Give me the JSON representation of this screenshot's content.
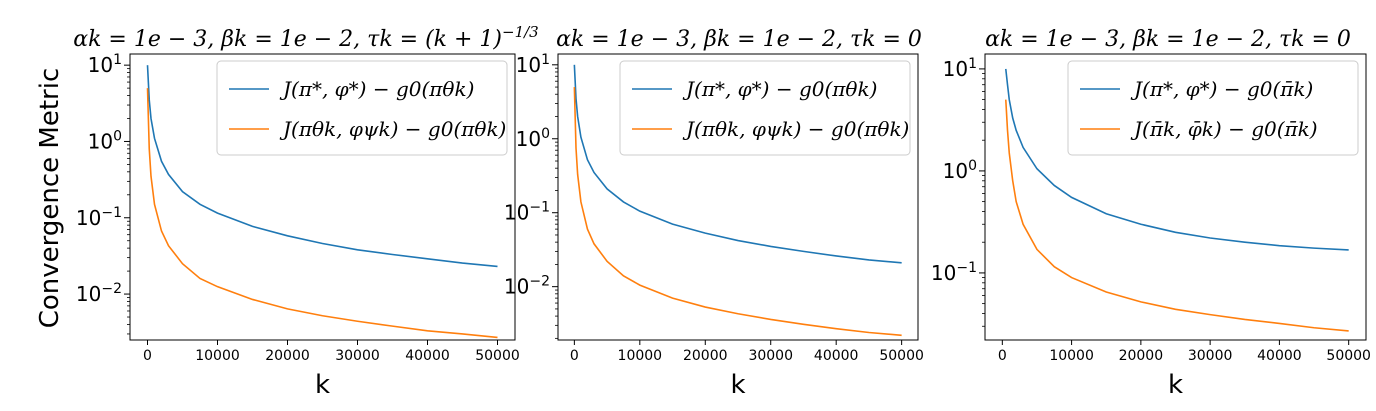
{
  "ylabel": "Convergence Metric",
  "colors": {
    "series1": "#1f77b4",
    "series2": "#ff7f0e"
  },
  "chart_data": [
    {
      "type": "line",
      "title": "αk = 1e − 3, βk = 1e − 2, τk = (k + 1)^−1/3",
      "xlabel": "k",
      "ylabel": "Convergence Metric",
      "yscale": "log",
      "xlim": [
        -2500,
        52500
      ],
      "ylim": [
        0.0025,
        14
      ],
      "xticks": [
        0,
        10000,
        20000,
        30000,
        40000,
        50000
      ],
      "xtick_labels": [
        "0",
        "10000",
        "20000",
        "30000",
        "40000",
        "50000"
      ],
      "yticks": [
        0.01,
        0.1,
        1,
        10
      ],
      "ytick_labels": [
        "10^-2",
        "10^-1",
        "10^0",
        "10^1"
      ],
      "legend": "top-right",
      "grid": false,
      "series": [
        {
          "name": "J(π*, φ*) − g0(πθk)",
          "x": [
            0,
            250,
            500,
            1000,
            2000,
            3000,
            5000,
            7500,
            10000,
            15000,
            20000,
            25000,
            30000,
            35000,
            40000,
            45000,
            50000
          ],
          "y": [
            10.0,
            3.5,
            2.0,
            1.1,
            0.55,
            0.37,
            0.22,
            0.15,
            0.115,
            0.077,
            0.058,
            0.046,
            0.038,
            0.033,
            0.029,
            0.0255,
            0.023
          ]
        },
        {
          "name": "J(πθk, φψk) − g0(πθk)",
          "x": [
            0,
            250,
            500,
            1000,
            2000,
            3000,
            5000,
            7500,
            10000,
            15000,
            20000,
            25000,
            30000,
            35000,
            40000,
            45000,
            50000
          ],
          "y": [
            5.0,
            0.8,
            0.35,
            0.15,
            0.067,
            0.043,
            0.025,
            0.016,
            0.0125,
            0.0085,
            0.0064,
            0.0052,
            0.0044,
            0.0038,
            0.0033,
            0.003,
            0.0027
          ]
        }
      ]
    },
    {
      "type": "line",
      "title": "αk = 1e − 3, βk = 1e − 2, τk = 0",
      "xlabel": "k",
      "yscale": "log",
      "xlim": [
        -2500,
        52500
      ],
      "ylim": [
        0.0019,
        14
      ],
      "xticks": [
        0,
        10000,
        20000,
        30000,
        40000,
        50000
      ],
      "xtick_labels": [
        "0",
        "10000",
        "20000",
        "30000",
        "40000",
        "50000"
      ],
      "yticks": [
        0.01,
        0.1,
        1,
        10
      ],
      "ytick_labels": [
        "10^-2",
        "10^-1",
        "10^0",
        "10^1"
      ],
      "legend": "top-right",
      "grid": false,
      "series": [
        {
          "name": "J(π*, φ*) − g0(πθk)",
          "x": [
            0,
            250,
            500,
            1000,
            2000,
            3000,
            5000,
            7500,
            10000,
            15000,
            20000,
            25000,
            30000,
            35000,
            40000,
            45000,
            50000
          ],
          "y": [
            10.0,
            3.5,
            2.0,
            1.05,
            0.52,
            0.35,
            0.21,
            0.14,
            0.105,
            0.07,
            0.053,
            0.042,
            0.035,
            0.03,
            0.026,
            0.023,
            0.021
          ]
        },
        {
          "name": "J(πθk, φψk) − g0(πθk)",
          "x": [
            0,
            250,
            500,
            1000,
            2000,
            3000,
            5000,
            7500,
            10000,
            15000,
            20000,
            25000,
            30000,
            35000,
            40000,
            45000,
            50000
          ],
          "y": [
            5.0,
            0.75,
            0.33,
            0.14,
            0.06,
            0.038,
            0.022,
            0.014,
            0.0105,
            0.007,
            0.0053,
            0.0043,
            0.0036,
            0.0031,
            0.0027,
            0.0024,
            0.0022
          ]
        }
      ]
    },
    {
      "type": "line",
      "title": "αk = 1e − 3, βk = 1e − 2, τk = 0",
      "xlabel": "k",
      "yscale": "log",
      "xlim": [
        -2500,
        52500
      ],
      "ylim": [
        0.022,
        14
      ],
      "xticks": [
        0,
        10000,
        20000,
        30000,
        40000,
        50000
      ],
      "xtick_labels": [
        "0",
        "10000",
        "20000",
        "30000",
        "40000",
        "50000"
      ],
      "yticks": [
        0.1,
        1,
        10
      ],
      "ytick_labels": [
        "10^-1",
        "10^0",
        "10^1"
      ],
      "legend": "top-right",
      "grid": false,
      "series": [
        {
          "name": "J(π*, φ*) − g0(π̄k)",
          "x": [
            500,
            750,
            1000,
            1500,
            2000,
            3000,
            5000,
            7500,
            10000,
            15000,
            20000,
            25000,
            30000,
            35000,
            40000,
            45000,
            50000
          ],
          "y": [
            10.0,
            7.0,
            5.0,
            3.3,
            2.5,
            1.7,
            1.05,
            0.72,
            0.55,
            0.38,
            0.3,
            0.25,
            0.22,
            0.2,
            0.185,
            0.175,
            0.168
          ]
        },
        {
          "name": "J(π̄k, φ̄k) − g0(π̄k)",
          "x": [
            500,
            750,
            1000,
            1500,
            2000,
            3000,
            5000,
            7500,
            10000,
            15000,
            20000,
            25000,
            30000,
            35000,
            40000,
            45000,
            50000
          ],
          "y": [
            5.0,
            2.5,
            1.5,
            0.8,
            0.5,
            0.3,
            0.17,
            0.115,
            0.09,
            0.065,
            0.052,
            0.044,
            0.039,
            0.035,
            0.032,
            0.029,
            0.027
          ]
        }
      ]
    }
  ]
}
